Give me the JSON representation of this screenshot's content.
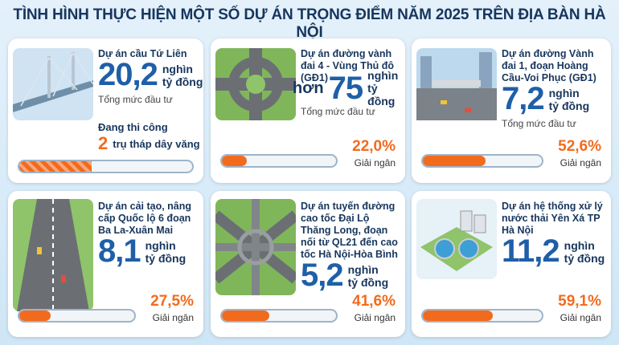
{
  "title": "TÌNH HÌNH THỰC HIỆN MỘT SỐ DỰ ÁN TRỌNG ĐIỂM NĂM 2025 TRÊN ĐỊA BÀN HÀ NỘI",
  "cards": [
    {
      "name": "Dự án cầu Tứ Liên",
      "amount": "20,2",
      "unit": [
        "nghìn",
        "tỷ đồng"
      ],
      "caption": "Tổng mức đầu tư",
      "status": "Đang thi công",
      "status_count": "2",
      "status_text": "trụ tháp dây văng"
    },
    {
      "name": "Dự án đường vành đai 4 - Vùng Thủ đô (GĐ1)",
      "prefix": "hơn",
      "amount": "75",
      "unit": [
        "nghìn",
        "tỷ đồng"
      ],
      "caption": "Tổng mức đầu tư",
      "disbursed": {
        "value": 22.0,
        "label": "22,0%"
      },
      "disbursed_text": "Giải ngân"
    },
    {
      "name": "Dự án đường Vành đai 1, đoạn Hoàng Cầu-Voi Phục (GĐ1)",
      "amount": "7,2",
      "unit": [
        "nghìn",
        "tỷ đồng"
      ],
      "caption": "Tổng mức đầu tư",
      "disbursed": {
        "value": 52.6,
        "label": "52,6%"
      },
      "disbursed_text": "Giải ngân"
    },
    {
      "name": "Dự án cải tạo, nâng cấp Quốc lộ 6 đoạn Ba La-Xuân Mai",
      "amount": "8,1",
      "unit": [
        "nghìn",
        "tỷ đồng"
      ],
      "disbursed": {
        "value": 27.5,
        "label": "27,5%"
      },
      "disbursed_text": "Giải ngân"
    },
    {
      "name": "Dự án tuyến đường cao tốc Đại Lộ Thăng Long, đoạn nối từ QL21 đến cao tốc Hà Nội-Hòa Bình",
      "amount": "5,2",
      "unit": [
        "nghìn",
        "tỷ đồng"
      ],
      "disbursed": {
        "value": 41.6,
        "label": "41,6%"
      },
      "disbursed_text": "Giải ngân"
    },
    {
      "name": "Dự án hệ thống xử lý nước thải Yên Xá TP Hà Nội",
      "amount": "11,2",
      "unit": [
        "nghìn",
        "tỷ đồng"
      ],
      "disbursed": {
        "value": 59.1,
        "label": "59,1%"
      },
      "disbursed_text": "Giải ngân"
    }
  ]
}
